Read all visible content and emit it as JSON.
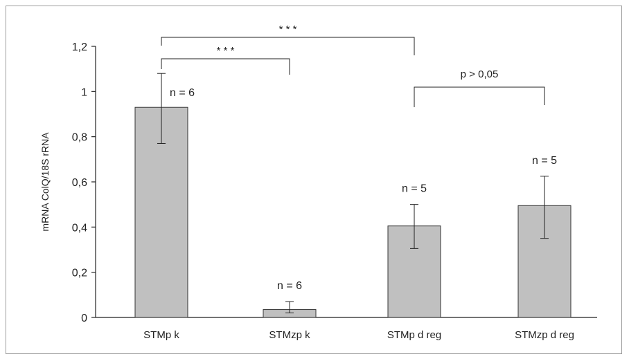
{
  "chart_data": {
    "type": "bar",
    "categories": [
      "STMp k",
      "STMzp k",
      "STMp d reg",
      "STMzp d reg"
    ],
    "values": [
      0.93,
      0.035,
      0.405,
      0.495
    ],
    "error_low": [
      0.77,
      0.02,
      0.305,
      0.35
    ],
    "error_high": [
      1.08,
      0.07,
      0.5,
      0.625
    ],
    "n_labels": [
      "n = 6",
      "n = 6",
      "n = 5",
      "n = 5"
    ],
    "ylabel": "mRNA ColQ/18S rRNA",
    "ylim": [
      0,
      1.2
    ],
    "yticks": [
      0,
      0.2,
      0.4,
      0.6,
      0.8,
      1,
      1.2
    ],
    "ytick_labels": [
      "0",
      "0,2",
      "0,4",
      "0,6",
      "0,8",
      "1",
      "1,2"
    ],
    "grid": false,
    "bar_color": "#c0c0c0",
    "comparisons": [
      {
        "from": 0,
        "to": 2,
        "label": "* * *"
      },
      {
        "from": 0,
        "to": 1,
        "label": "* * *"
      },
      {
        "from": 2,
        "to": 3,
        "label": "p > 0,05"
      }
    ]
  }
}
